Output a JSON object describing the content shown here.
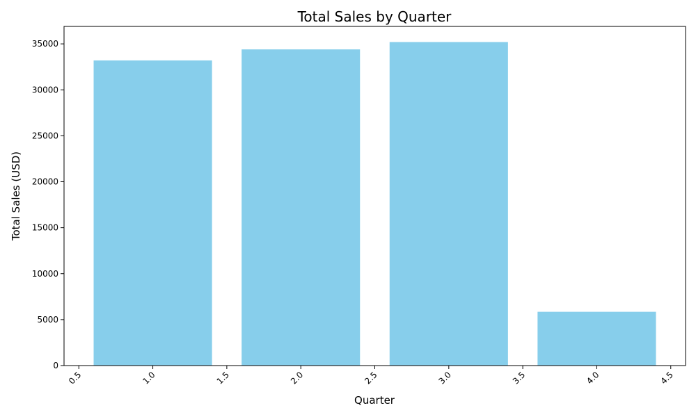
{
  "chart_data": {
    "type": "bar",
    "title": "Total Sales by Quarter",
    "xlabel": "Quarter",
    "ylabel": "Total Sales (USD)",
    "x": [
      1,
      2,
      3,
      4
    ],
    "values": [
      33200,
      34400,
      35200,
      5850
    ],
    "bar_width": 0.8,
    "bar_color": "#87CEEB",
    "xlim": [
      0.4,
      4.6
    ],
    "ylim": [
      0,
      36900
    ],
    "x_ticks": [
      0.5,
      1.0,
      1.5,
      2.0,
      2.5,
      3.0,
      3.5,
      4.0,
      4.5
    ],
    "x_tick_labels": [
      "0.5",
      "1.0",
      "1.5",
      "2.0",
      "2.5",
      "3.0",
      "3.5",
      "4.0",
      "4.5"
    ],
    "y_ticks": [
      0,
      5000,
      10000,
      15000,
      20000,
      25000,
      30000,
      35000
    ],
    "y_tick_labels": [
      "0",
      "5000",
      "10000",
      "15000",
      "20000",
      "25000",
      "30000",
      "35000"
    ],
    "x_tick_rotation_deg": 45,
    "grid": false,
    "legend": "none"
  }
}
